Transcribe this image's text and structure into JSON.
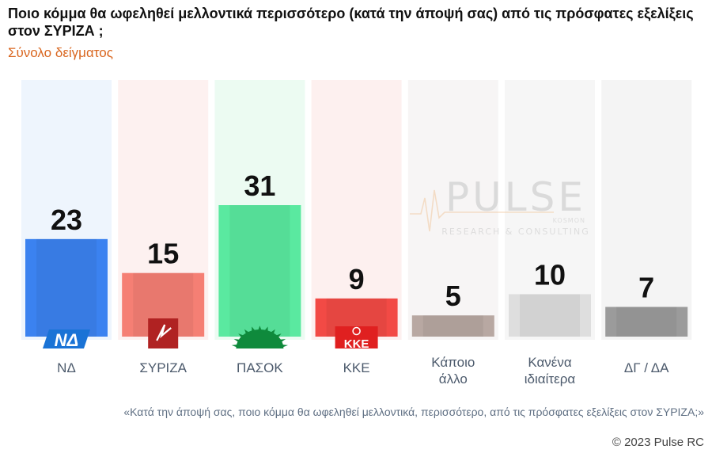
{
  "title": "Ποιο κόμμα θα ωφεληθεί μελλοντικά περισσότερο (κατά την άποψή σας) από τις πρόσφατες εξελίξεις στον ΣΥΡΙΖΑ ;",
  "subtitle": "Σύνολο δείγματος",
  "footnote": "«Κατά την άποψή σας, ποιο κόμμα θα ωφεληθεί μελλοντικά, περισσότερο, από τις πρόσφατες εξελίξεις στον ΣΥΡΙΖΑ;»",
  "copyright": "© 2023 Pulse RC",
  "watermark": {
    "name": "PULSE",
    "sub": "KOSMON",
    "tagline": "RESEARCH & CONSULTING"
  },
  "logos": {
    "nd": "ΝΔ",
    "kke": "ΚΚΕ"
  },
  "chart_data": {
    "type": "bar",
    "title": "Ποιο κόμμα θα ωφεληθεί μελλοντικά περισσότερο (κατά την άποψή σας) από τις πρόσφατες εξελίξεις στον ΣΥΡΙΖΑ ;",
    "xlabel": "",
    "ylabel": "",
    "ylim": [
      0,
      40
    ],
    "grid": false,
    "categories": [
      [
        "ΝΔ"
      ],
      [
        "ΣΥΡΙΖΑ"
      ],
      [
        "ΠΑΣΟΚ"
      ],
      [
        "ΚΚΕ"
      ],
      [
        "Κάποιο",
        "άλλο"
      ],
      [
        "Κανένα",
        "ιδιαίτερα"
      ],
      [
        "ΔΓ / ΔΑ"
      ]
    ],
    "values": [
      23,
      15,
      31,
      9,
      5,
      10,
      7
    ],
    "colors": [
      "#3b82f0",
      "#f57f74",
      "#5ae9a0",
      "#f24a45",
      "#b8a8a2",
      "#dedede",
      "#9b9b9b"
    ],
    "backgrounds": [
      "#eef5fd",
      "#fdf1f0",
      "#ecfbf2",
      "#fdf0ef",
      "#f7f5f5",
      "#f6f6f6",
      "#f4f4f4"
    ],
    "logo_icons": [
      "nd-logo-icon",
      "syriza-logo-icon",
      "pasok-sun-logo-icon",
      "kke-logo-icon",
      "",
      "",
      ""
    ]
  }
}
